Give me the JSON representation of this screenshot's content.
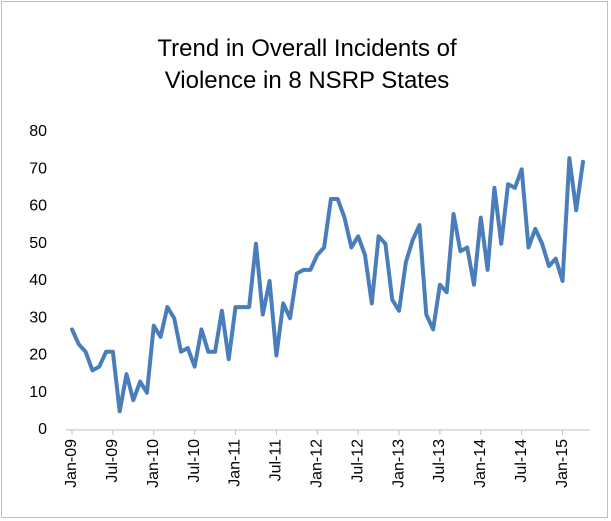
{
  "chart_data": {
    "type": "line",
    "title": "Trend in Overall Incidents of Violence in 8 NSRP States",
    "categories": [
      "Jan-09",
      null,
      null,
      null,
      null,
      null,
      "Jul-09",
      null,
      null,
      null,
      null,
      null,
      "Jan-10",
      null,
      null,
      null,
      null,
      null,
      "Jul-10",
      null,
      null,
      null,
      null,
      null,
      "Jan-11",
      null,
      null,
      null,
      null,
      null,
      "Jul-11",
      null,
      null,
      null,
      null,
      null,
      "Jan-12",
      null,
      null,
      null,
      null,
      null,
      "Jul-12",
      null,
      null,
      null,
      null,
      null,
      "Jan-13",
      null,
      null,
      null,
      null,
      null,
      "Jul-13",
      null,
      null,
      null,
      null,
      null,
      "Jan-14",
      null,
      null,
      null,
      null,
      null,
      "Jul-14",
      null,
      null,
      null,
      null,
      null,
      "Jan-15",
      null,
      null,
      null
    ],
    "values": [
      27,
      23,
      21,
      16,
      17,
      21,
      21,
      5,
      15,
      8,
      13,
      10,
      28,
      25,
      33,
      30,
      21,
      22,
      17,
      27,
      21,
      21,
      32,
      19,
      33,
      33,
      33,
      50,
      31,
      40,
      20,
      34,
      30,
      42,
      43,
      43,
      47,
      49,
      62,
      62,
      57,
      49,
      52,
      47,
      34,
      52,
      50,
      35,
      32,
      45,
      51,
      55,
      31,
      27,
      39,
      37,
      58,
      48,
      49,
      39,
      57,
      43,
      65,
      50,
      66,
      65,
      70,
      49,
      54,
      50,
      44,
      46,
      40,
      73,
      59,
      72
    ],
    "color": "#4a7ebb",
    "ylim": [
      0,
      80
    ],
    "yticks": [
      0,
      10,
      20,
      30,
      40,
      50,
      60,
      70,
      80
    ],
    "grid": false
  }
}
